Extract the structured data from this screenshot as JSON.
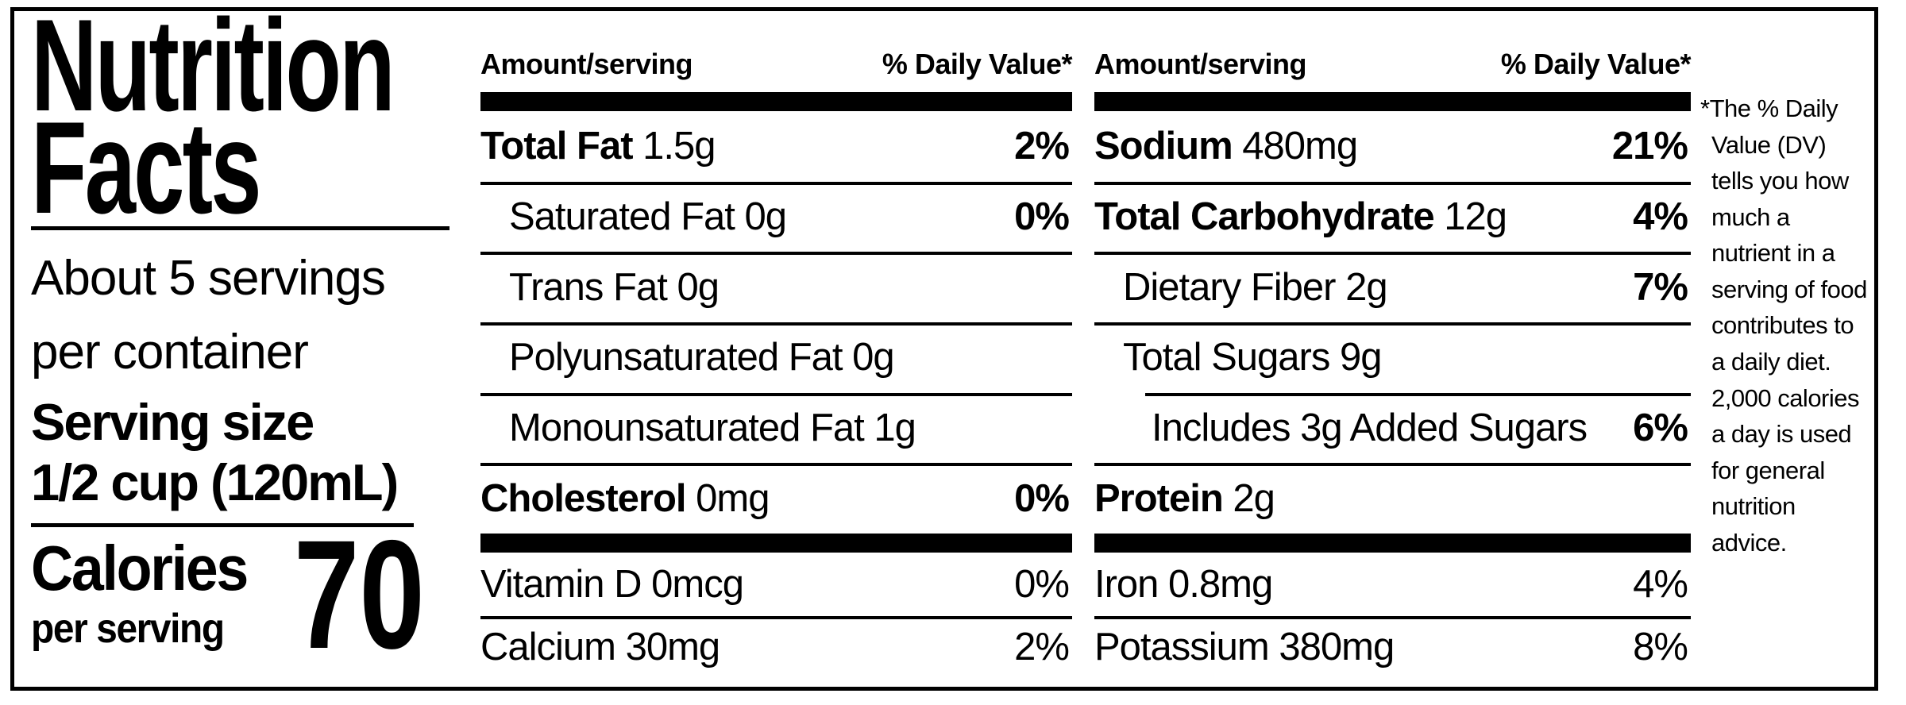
{
  "colors": {
    "ink": "#000000",
    "paper": "#ffffff"
  },
  "panel": {
    "title_lines": [
      "Nutrition",
      "Facts"
    ],
    "servings_lines": [
      "About 5 servings",
      "per container"
    ],
    "serving_size_label": "Serving size",
    "serving_size_value": "1/2 cup (120mL)",
    "calories_label": "Calories",
    "calories_sublabel": "per serving",
    "calories_value": "70"
  },
  "columns": [
    {
      "header_left": "Amount/serving",
      "header_right": "% Daily Value*",
      "rows": [
        {
          "name": "Total Fat",
          "amount": "1.5g",
          "dv": "2%",
          "name_bold": true,
          "dv_bold": true,
          "indent": 0
        },
        {
          "name": "Saturated Fat",
          "amount": "0g",
          "dv": "0%",
          "name_bold": false,
          "dv_bold": true,
          "indent": 1
        },
        {
          "name": "Trans Fat",
          "amount": "0g",
          "dv": "",
          "name_bold": false,
          "dv_bold": false,
          "indent": 1
        },
        {
          "name": "Polyunsaturated Fat",
          "amount": "0g",
          "dv": "",
          "name_bold": false,
          "dv_bold": false,
          "indent": 1
        },
        {
          "name": "Monounsaturated Fat",
          "amount": "1g",
          "dv": "",
          "name_bold": false,
          "dv_bold": false,
          "indent": 1
        },
        {
          "name": "Cholesterol",
          "amount": "0mg",
          "dv": "0%",
          "name_bold": true,
          "dv_bold": true,
          "indent": 0
        }
      ],
      "vitamins": [
        {
          "name": "Vitamin D",
          "amount": "0mcg",
          "dv": "0%"
        },
        {
          "name": "Calcium",
          "amount": "30mg",
          "dv": "2%"
        }
      ]
    },
    {
      "header_left": "Amount/serving",
      "header_right": "% Daily Value*",
      "rows": [
        {
          "name": "Sodium",
          "amount": "480mg",
          "dv": "21%",
          "name_bold": true,
          "dv_bold": true,
          "indent": 0
        },
        {
          "name": "Total Carbohydrate",
          "amount": "12g",
          "dv": "4%",
          "name_bold": true,
          "dv_bold": true,
          "indent": 0
        },
        {
          "name": "Dietary Fiber",
          "amount": "2g",
          "dv": "7%",
          "name_bold": false,
          "dv_bold": true,
          "indent": 1
        },
        {
          "name": "Total Sugars",
          "amount": "9g",
          "dv": "",
          "name_bold": false,
          "dv_bold": false,
          "indent": 1
        },
        {
          "name": "Includes 3g Added Sugars",
          "amount": "",
          "dv": "6%",
          "name_bold": false,
          "dv_bold": true,
          "indent": 2,
          "rule_indent": true
        },
        {
          "name": "Protein",
          "amount": "2g",
          "dv": "",
          "name_bold": true,
          "dv_bold": false,
          "indent": 0
        }
      ],
      "vitamins": [
        {
          "name": "Iron",
          "amount": "0.8mg",
          "dv": "4%"
        },
        {
          "name": "Potassium",
          "amount": "380mg",
          "dv": "8%"
        }
      ]
    }
  ],
  "footnote": "*The % Daily\nValue (DV)\ntells you how\nmuch a\nnutrient in a\nserving of food\ncontributes to\na daily diet.\n2,000 calories\na day is used\nfor general\nnutrition\nadvice."
}
